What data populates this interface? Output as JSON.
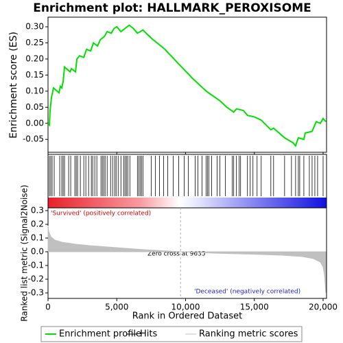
{
  "title": "Enrichment plot: HALLMARK_PEROXISOME",
  "chart_data": [
    {
      "type": "line",
      "ylabel": "Enrichment score (ES)",
      "xlim": [
        0,
        20250
      ],
      "ylim": [
        -0.09,
        0.33
      ],
      "yticks": [
        -0.05,
        {
          "value": 0,
          "label": "0.00"
        },
        0.05,
        {
          "value": 0.1,
          "label": "0.10"
        },
        0.15,
        {
          "value": 0.2,
          "label": "0.20"
        },
        0.25,
        {
          "value": 0.3,
          "label": "0.30"
        }
      ],
      "x": [
        0,
        100,
        150,
        250,
        400,
        800,
        900,
        1000,
        1100,
        1200,
        1600,
        1700,
        2000,
        2100,
        2300,
        2600,
        2800,
        3100,
        3300,
        3600,
        3800,
        4100,
        4300,
        4600,
        4800,
        5000,
        5300,
        5600,
        5900,
        6200,
        6500,
        6900,
        7500,
        8500,
        9600,
        10500,
        11500,
        12000,
        12500,
        13000,
        13500,
        13700,
        14200,
        14500,
        15000,
        15500,
        16200,
        16400,
        17200,
        17800,
        18000,
        18200,
        18600,
        18700,
        19200,
        19500,
        19800,
        20000,
        20200
      ],
      "series": [
        {
          "name": "Enrichment profile",
          "color": "#00e000",
          "values": [
            0,
            -0.005,
            0.04,
            0.08,
            0.11,
            0.095,
            0.115,
            0.11,
            0.13,
            0.175,
            0.16,
            0.17,
            0.16,
            0.2,
            0.21,
            0.205,
            0.23,
            0.225,
            0.25,
            0.24,
            0.26,
            0.27,
            0.285,
            0.28,
            0.295,
            0.3,
            0.285,
            0.295,
            0.305,
            0.295,
            0.28,
            0.29,
            0.265,
            0.23,
            0.18,
            0.14,
            0.1,
            0.085,
            0.07,
            0.05,
            0.035,
            0.045,
            0.04,
            0.025,
            0.02,
            0.01,
            -0.02,
            -0.015,
            -0.045,
            -0.06,
            -0.07,
            -0.045,
            -0.05,
            -0.03,
            -0.025,
            0.005,
            0,
            0.015,
            0.005
          ]
        }
      ]
    },
    {
      "type": "hits",
      "xlim": [
        0,
        20250
      ],
      "series": [
        {
          "name": "Hits",
          "color": "#000000",
          "x": [
            100,
            200,
            300,
            450,
            850,
            1000,
            1100,
            1200,
            1500,
            1650,
            1950,
            2050,
            2150,
            2350,
            2600,
            2750,
            2950,
            3150,
            3250,
            3400,
            3550,
            3850,
            3950,
            4050,
            4150,
            4300,
            4550,
            4700,
            4850,
            4950,
            5100,
            5300,
            5500,
            5600,
            5700,
            5800,
            5950,
            6500,
            6600,
            6700,
            6800,
            6900,
            7500,
            7800,
            8100,
            8400,
            8700,
            9100,
            9500,
            9900,
            10200,
            10700,
            10900,
            11200,
            11500,
            11600,
            11700,
            11900,
            12300,
            12500,
            12900,
            13400,
            13500,
            13700,
            13900,
            14000,
            14500,
            14700,
            14900,
            15200,
            15500,
            16200,
            16400,
            17200,
            17700,
            18000,
            18200,
            18300,
            18600,
            19000,
            19200,
            19400,
            19600,
            20000
          ]
        }
      ]
    },
    {
      "type": "area",
      "ylabel": "Ranked list metric (Signal2Noise)",
      "xlabel": "Rank in Ordered Dataset",
      "xlim": [
        0,
        20250
      ],
      "ylim": [
        -0.34,
        0.32
      ],
      "xticks": [
        0,
        {
          "value": 5000,
          "label": "5,000"
        },
        {
          "value": 10000,
          "label": "10,000"
        },
        {
          "value": 15000,
          "label": "15,000"
        },
        {
          "value": 20000,
          "label": "20,000"
        }
      ],
      "yticks": [
        {
          "value": -0.3,
          "label": "-0.3"
        },
        -0.2,
        -0.1,
        {
          "value": 0,
          "label": "0.0"
        },
        0.1,
        0.2,
        0.3
      ],
      "x": [
        0,
        50,
        200,
        500,
        1000,
        2000,
        3000,
        5000,
        7000,
        9635,
        12000,
        15000,
        17000,
        18500,
        19300,
        19800,
        20000,
        20100,
        20200
      ],
      "series": [
        {
          "name": "Ranking metric scores",
          "color": "#c0c0c0",
          "values": [
            0.19,
            0.15,
            0.11,
            0.085,
            0.07,
            0.055,
            0.045,
            0.03,
            0.015,
            0,
            -0.01,
            -0.018,
            -0.025,
            -0.035,
            -0.05,
            -0.075,
            -0.11,
            -0.17,
            -0.3
          ]
        }
      ],
      "zero_cross": 9635,
      "annotations": [
        "'Survived' (positively correlated)",
        "Zero cross at 9635",
        "'Deceased' (negatively correlated)"
      ]
    }
  ]
}
